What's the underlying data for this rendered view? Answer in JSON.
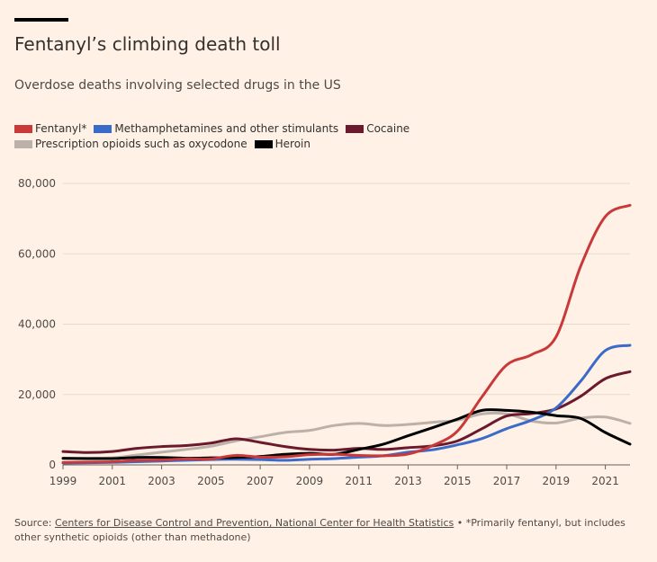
{
  "title": "Fentanyl’s climbing death toll",
  "subtitle": "Overdose deaths involving selected drugs in the US",
  "source": {
    "prefix": "Source: ",
    "link": "Centers for Disease Control and Prevention, National Center for Health Statistics",
    "separator": " • ",
    "note": "*Primarily fentanyl, but includes other synthetic opioids (other than methadone)"
  },
  "legend": [
    [
      {
        "label": "Fentanyl*",
        "color": "#c9393a"
      },
      {
        "label": "Methamphetamines and other stimulants",
        "color": "#3b6bc9"
      },
      {
        "label": "Cocaine",
        "color": "#6b1a2e"
      }
    ],
    [
      {
        "label": "Prescription opioids such as oxycodone",
        "color": "#bcb1a9"
      },
      {
        "label": "Heroin",
        "color": "#000000"
      }
    ]
  ],
  "chart_data": {
    "type": "line",
    "title": "Fentanyl’s climbing death toll",
    "subtitle": "Overdose deaths involving selected drugs in the US",
    "ylim": [
      0,
      80000
    ],
    "yticks": [
      0,
      20000,
      40000,
      60000,
      80000
    ],
    "ytick_labels": [
      "0",
      "20,000",
      "40,000",
      "60,000",
      "80,000"
    ],
    "xlim": [
      1999,
      2022
    ],
    "xticks": [
      1999,
      2001,
      2003,
      2005,
      2007,
      2009,
      2011,
      2013,
      2015,
      2017,
      2019,
      2021
    ],
    "xtick_labels": [
      "1999",
      "2001",
      "2003",
      "2005",
      "2007",
      "2009",
      "2011",
      "2013",
      "2015",
      "2017",
      "2019",
      "2021"
    ],
    "grid": "horizontal",
    "legend_position": "top-left",
    "x": [
      1999,
      2000,
      2001,
      2002,
      2003,
      2004,
      2005,
      2006,
      2007,
      2008,
      2009,
      2010,
      2011,
      2012,
      2013,
      2014,
      2015,
      2016,
      2017,
      2018,
      2019,
      2020,
      2021,
      2022
    ],
    "series": [
      {
        "name": "Prescription opioids such as oxycodone",
        "color": "#bcb1a9",
        "values": [
          1800,
          1900,
          2000,
          2800,
          3600,
          4400,
          5300,
          6800,
          8000,
          9200,
          9800,
          11200,
          11800,
          11200,
          11500,
          12100,
          12700,
          14500,
          14500,
          12500,
          11900,
          13300,
          13600,
          11800
        ]
      },
      {
        "name": "Cocaine",
        "color": "#6b1a2e",
        "values": [
          3800,
          3500,
          3800,
          4700,
          5200,
          5500,
          6200,
          7400,
          6400,
          5200,
          4400,
          4200,
          4700,
          4400,
          4900,
          5400,
          6800,
          10300,
          13900,
          14600,
          15900,
          19500,
          24500,
          26500
        ]
      },
      {
        "name": "Methamphetamines and other stimulants",
        "color": "#3b6bc9",
        "values": [
          500,
          600,
          700,
          900,
          1100,
          1300,
          1500,
          1600,
          1500,
          1300,
          1600,
          1800,
          2200,
          2600,
          3600,
          4300,
          5700,
          7500,
          10300,
          12700,
          16200,
          23800,
          32500,
          34000
        ]
      },
      {
        "name": "Heroin",
        "color": "#000000",
        "values": [
          1900,
          1800,
          1800,
          2100,
          2100,
          1900,
          2000,
          2100,
          2400,
          3000,
          3300,
          3000,
          4400,
          5900,
          8300,
          10600,
          13000,
          15500,
          15500,
          15000,
          14000,
          13200,
          9200,
          5900
        ]
      },
      {
        "name": "Fentanyl*",
        "color": "#c9393a",
        "values": [
          700,
          800,
          900,
          1300,
          1400,
          1700,
          1700,
          2700,
          2200,
          2300,
          2900,
          3000,
          2700,
          2600,
          3100,
          5500,
          9600,
          19400,
          28400,
          31300,
          36400,
          56500,
          70600,
          73800
        ]
      }
    ]
  }
}
